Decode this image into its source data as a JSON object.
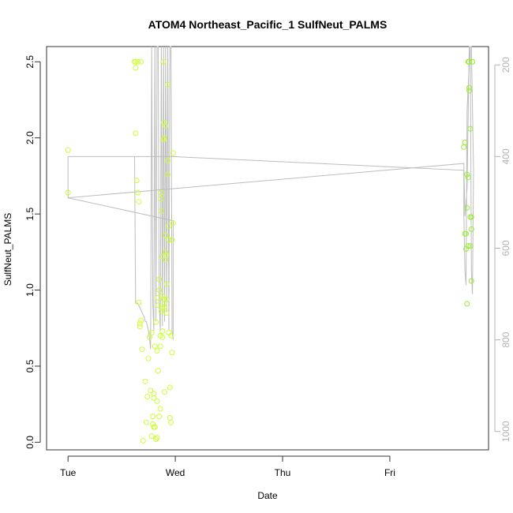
{
  "chart_data": {
    "type": "scatter",
    "title": "ATOM4 Northeast_Pacific_1 SulfNeut_PALMS",
    "xlabel": "Date",
    "ylabel": "SulfNeut_PALMS",
    "x_ticks": [
      "Tue",
      "Wed",
      "Thu",
      "Fri"
    ],
    "x_range_days": [
      -0.2,
      3.92
    ],
    "ylim": [
      -0.05,
      2.6
    ],
    "y_ticks": [
      "0.0",
      "0.5",
      "1.0",
      "1.5",
      "2.0",
      "2.5"
    ],
    "y_tick_values": [
      0,
      0.5,
      1.0,
      1.5,
      2.0,
      2.5
    ],
    "right_axis": {
      "label": "",
      "ticks": [
        "200",
        "400",
        "600",
        "800",
        "1000"
      ],
      "tick_values": [
        200,
        400,
        600,
        800,
        1000
      ],
      "range": [
        160,
        1040
      ],
      "reversed": true,
      "color": "#b3b3b3"
    },
    "grid": false,
    "colors": {
      "points": "#ccff33",
      "points_late": "#99ee33",
      "altitude_line": "#bdbdbd",
      "axis": "#333333"
    },
    "series": [
      {
        "values_x": [
          0.0,
          0.0,
          0.62,
          0.63,
          0.63,
          0.64,
          0.65,
          0.66,
          0.66,
          0.67,
          0.67,
          0.68,
          0.69,
          0.7,
          0.72,
          0.73,
          0.74,
          0.75,
          0.76,
          0.77,
          0.78,
          0.78,
          0.79,
          0.79,
          0.8,
          0.8,
          0.8,
          0.81,
          0.81,
          0.82,
          0.82,
          0.83,
          0.83,
          0.83,
          0.84,
          0.84,
          0.84,
          0.85,
          0.85,
          0.85,
          0.86,
          0.86,
          0.86,
          0.87,
          0.87,
          0.87,
          0.87,
          0.88,
          0.88,
          0.88,
          0.88,
          0.89,
          0.89,
          0.89,
          0.89,
          0.9,
          0.9,
          0.9,
          0.9,
          0.91,
          0.91,
          0.91,
          0.91,
          0.92,
          0.92,
          0.92,
          0.93,
          0.93,
          0.93,
          0.94,
          0.94,
          0.94,
          0.95,
          0.95,
          0.96,
          0.96,
          0.97,
          0.97,
          0.98,
          0.98,
          0.63,
          0.65,
          0.68,
          0.88,
          0.92
        ],
        "values_y": [
          1.92,
          1.64,
          2.5,
          2.46,
          2.03,
          1.72,
          1.64,
          1.58,
          0.92,
          0.78,
          0.76,
          0.8,
          0.61,
          0.01,
          0.4,
          0.13,
          0.3,
          0.55,
          0.69,
          0.34,
          0.04,
          0.72,
          0.12,
          0.17,
          0.32,
          0.1,
          0.29,
          0.63,
          0.1,
          0.02,
          0.79,
          0.6,
          0.27,
          0.03,
          0.47,
          0.9,
          0.95,
          0.17,
          1.0,
          1.07,
          0.22,
          0.63,
          0.7,
          1.52,
          1.6,
          1.64,
          0.86,
          0.73,
          0.88,
          0.96,
          0.69,
          2.5,
          2.1,
          1.99,
          0.94,
          0.33,
          0.89,
          0.91,
          2.0,
          1.25,
          1.2,
          1.36,
          2.08,
          0.85,
          0.94,
          1.04,
          2.35,
          1.85,
          1.76,
          0.72,
          1.33,
          1.42,
          0.36,
          0.16,
          0.13,
          0.7,
          0.59,
          1.33,
          1.9,
          1.44,
          2.5,
          2.5,
          2.5,
          1.22,
          1.23
        ]
      },
      {
        "values_x": [
          3.69,
          3.7,
          3.7,
          3.71,
          3.71,
          3.72,
          3.72,
          3.72,
          3.73,
          3.73,
          3.73,
          3.74,
          3.74,
          3.74,
          3.75,
          3.75,
          3.75,
          3.76,
          3.76,
          3.76,
          3.77,
          3.77
        ],
        "values_y": [
          1.94,
          1.97,
          1.37,
          1.27,
          1.37,
          1.76,
          1.54,
          0.91,
          1.29,
          1.74,
          2.5,
          2.33,
          2.31,
          2.5,
          2.06,
          1.48,
          1.29,
          1.4,
          1.06,
          1.48,
          2.5,
          2.5
        ]
      }
    ],
    "altitude_line": {
      "x": [
        0.0,
        0.0,
        3.69,
        3.7,
        3.72,
        3.74,
        3.76,
        3.78,
        3.77,
        3.76,
        3.75,
        3.74,
        3.72,
        3.71,
        3.7,
        3.69,
        3.69,
        0.98,
        0.0
      ],
      "y": [
        400,
        490,
        415,
        530,
        470,
        160,
        160,
        430,
        700,
        650,
        160,
        200,
        300,
        680,
        650,
        520,
        430,
        400,
        400
      ]
    },
    "altitude_line_2": {
      "x": [
        0.0,
        0.98,
        0.98,
        0.97,
        0.96,
        0.95,
        0.94,
        0.93,
        0.92,
        0.91,
        0.9,
        0.89,
        0.88,
        0.87,
        0.86,
        0.85,
        0.84,
        0.83,
        0.82,
        0.81,
        0.8,
        0.79,
        0.78,
        0.77,
        0.76,
        0.75,
        0.74,
        0.73,
        0.72,
        0.71,
        0.7,
        0.69,
        0.68,
        0.67,
        0.66,
        0.65,
        0.64,
        0.63,
        0.62
      ],
      "y": [
        490,
        540,
        800,
        780,
        160,
        160,
        780,
        160,
        740,
        160,
        760,
        160,
        770,
        160,
        780,
        720,
        160,
        160,
        760,
        160,
        780,
        720,
        160,
        820,
        800,
        780,
        770,
        760,
        760,
        750,
        745,
        740,
        735,
        730,
        725,
        720,
        720,
        720,
        400
      ]
    }
  }
}
